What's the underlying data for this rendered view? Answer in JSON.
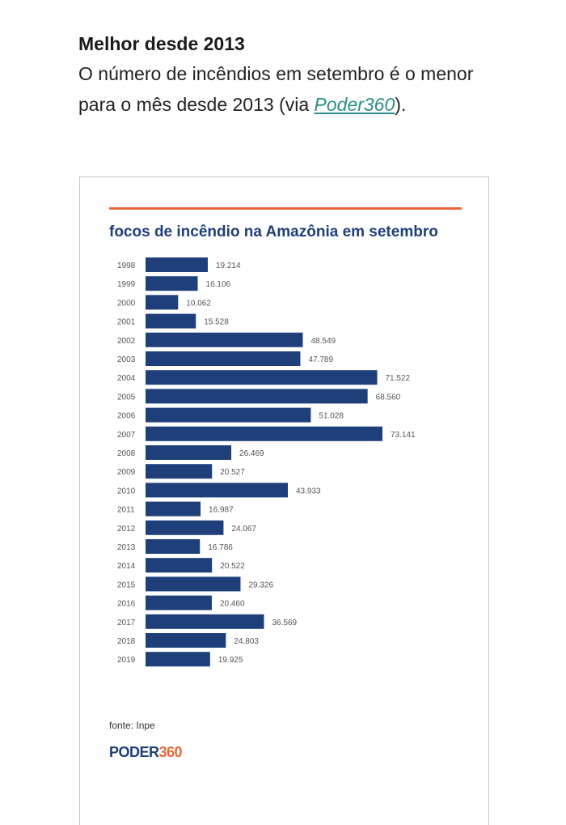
{
  "article": {
    "heading": "Melhor desde 2013",
    "body_before_link": "O número de incêndios em setembro é o menor para o mês desde 2013 (via ",
    "link_text": "Poder360",
    "body_after_link": ")."
  },
  "colors": {
    "bar": "#1f3f7a",
    "accent": "#e8663a",
    "value_label": "#555555"
  },
  "chart_data": {
    "type": "bar",
    "orientation": "horizontal",
    "title": "focos de incêndio na Amazônia em setembro",
    "categories": [
      "1998",
      "1999",
      "2000",
      "2001",
      "2002",
      "2003",
      "2004",
      "2005",
      "2006",
      "2007",
      "2008",
      "2009",
      "2010",
      "2011",
      "2012",
      "2013",
      "2014",
      "2015",
      "2016",
      "2017",
      "2018",
      "2019"
    ],
    "values": [
      19214,
      16106,
      10062,
      15528,
      48549,
      47789,
      71522,
      68560,
      51028,
      73141,
      26469,
      20527,
      43933,
      16987,
      24067,
      16786,
      20522,
      29326,
      20460,
      36569,
      24803,
      19925
    ],
    "value_labels": [
      "19.214",
      "16.106",
      "10.062",
      "15.528",
      "48.549",
      "47.789",
      "71.522",
      "68.560",
      "51.028",
      "73.141",
      "26.469",
      "20.527",
      "43.933",
      "16.987",
      "24.067",
      "16.786",
      "20.522",
      "29.326",
      "20.460",
      "36.569",
      "24.803",
      "19.925"
    ],
    "grid": false,
    "legend": "none"
  },
  "footer": {
    "source": "fonte: Inpe",
    "logo_part1": "PODER",
    "logo_part2": "360"
  }
}
